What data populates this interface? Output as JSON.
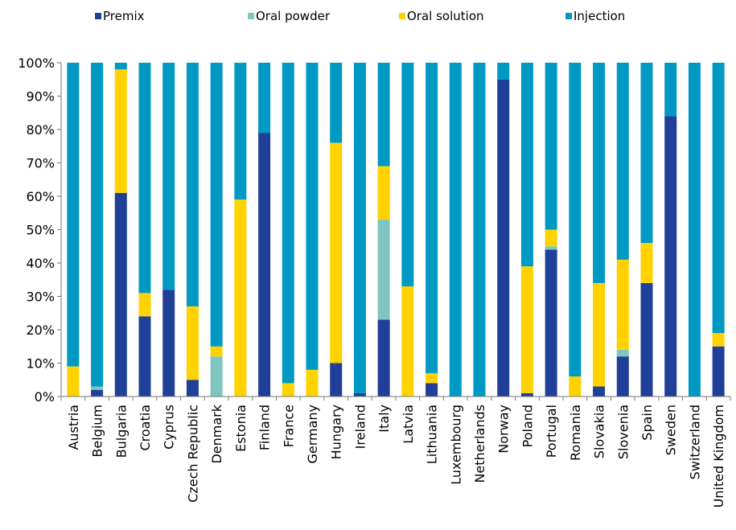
{
  "chart_data": {
    "type": "bar",
    "stacked": true,
    "percent": true,
    "title": "",
    "xlabel": "",
    "ylabel": "",
    "ylim": [
      0,
      100
    ],
    "yticks": [
      "0%",
      "10%",
      "20%",
      "30%",
      "40%",
      "50%",
      "60%",
      "70%",
      "80%",
      "90%",
      "100%"
    ],
    "grid": false,
    "legend_position": "top",
    "categories": [
      "Austria",
      "Belgium",
      "Bulgaria",
      "Croatia",
      "Cyprus",
      "Czech Republic",
      "Denmark",
      "Estonia",
      "Finland",
      "France",
      "Germany",
      "Hungary",
      "Ireland",
      "Italy",
      "Latvia",
      "Lithuania",
      "Luxembourg",
      "Netherlands",
      "Norway",
      "Poland",
      "Portugal",
      "Romania",
      "Slovakia",
      "Slovenia",
      "Spain",
      "Sweden",
      "Switzerland",
      "United Kingdom"
    ],
    "series": [
      {
        "name": "Premix",
        "color": "#1f3f99",
        "values": [
          0,
          2,
          61,
          24,
          32,
          5,
          0,
          0,
          79,
          0,
          0,
          10,
          1,
          23,
          0,
          4,
          0,
          0,
          95,
          1,
          44,
          0,
          3,
          12,
          34,
          84,
          0,
          15
        ]
      },
      {
        "name": "Oral powder",
        "color": "#7fc6c0",
        "values": [
          0,
          1,
          0,
          0,
          0,
          0,
          12,
          0,
          0,
          0,
          0,
          0,
          0,
          30,
          0,
          0,
          0,
          0,
          0,
          0,
          1,
          0,
          0,
          2,
          0,
          0,
          0,
          0
        ]
      },
      {
        "name": "Oral solution",
        "color": "#ffd200",
        "values": [
          9,
          0,
          37,
          7,
          0,
          22,
          3,
          59,
          0,
          4,
          8,
          66,
          0,
          16,
          33,
          3,
          0,
          0,
          0,
          38,
          5,
          6,
          31,
          27,
          12,
          0,
          0,
          4
        ]
      },
      {
        "name": "Injection",
        "color": "#0099c4",
        "values": [
          91,
          97,
          2,
          69,
          68,
          73,
          85,
          41,
          21,
          96,
          92,
          24,
          99,
          31,
          67,
          93,
          100,
          100,
          5,
          61,
          50,
          94,
          66,
          59,
          54,
          16,
          100,
          81
        ]
      }
    ]
  }
}
